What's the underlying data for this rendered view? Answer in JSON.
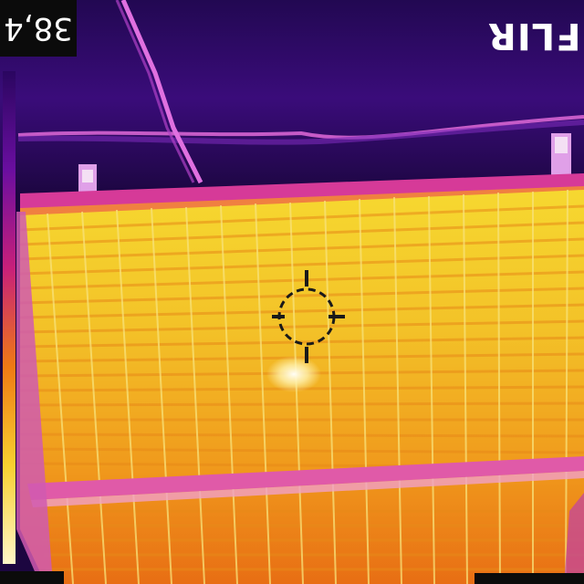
{
  "readout": {
    "temperature": "38,4"
  },
  "branding": {
    "logo_text": "FLIR"
  },
  "palette": {
    "background_dark": "#1a0640",
    "sky_purple": "#3a0c7a",
    "frame_magenta": "#d02a9a",
    "panel_orange": "#ee7a14",
    "panel_yellow": "#f4d22a",
    "hotspot_white": "#fff8e0",
    "grid_line": "#f6e070"
  },
  "crosshair": {
    "shape": "circle-reticle",
    "color": "#1a1a1a"
  },
  "scale": {
    "orientation": "vertical",
    "colors": [
      "#fff6c8",
      "#f8d030",
      "#ef7a14",
      "#c8207a",
      "#6a0ea0",
      "#2a0660"
    ]
  }
}
